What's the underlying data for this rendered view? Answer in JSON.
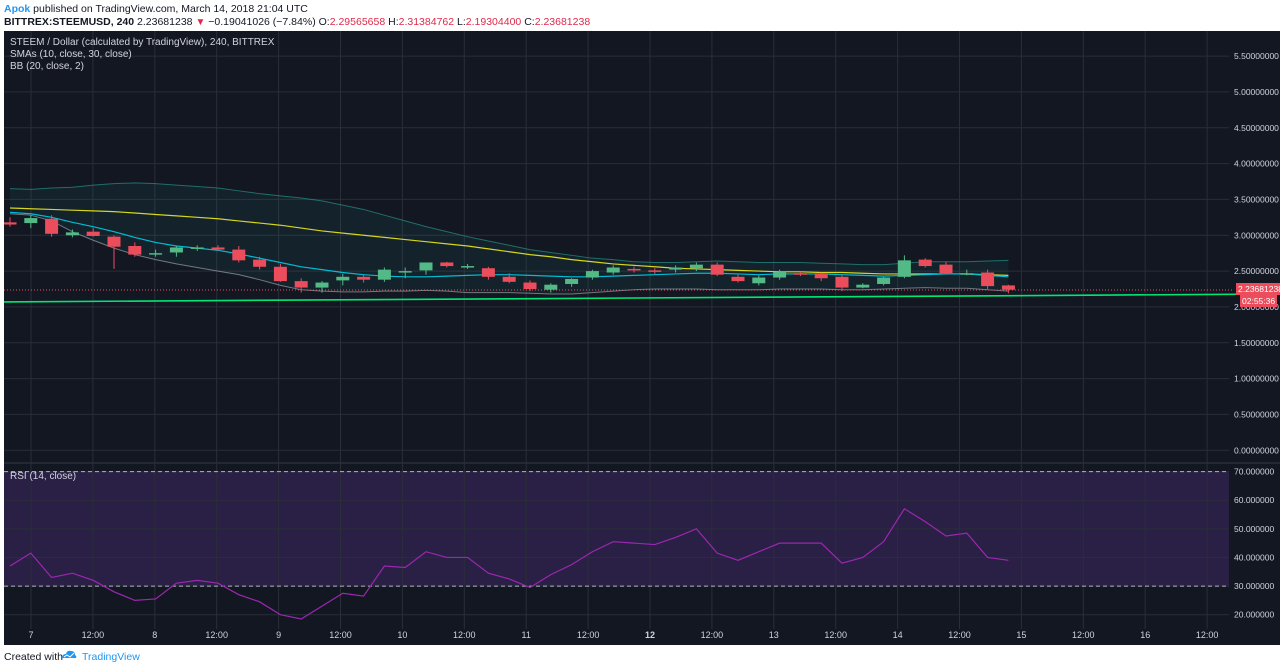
{
  "header": {
    "author": "Apok",
    "published_text": "published on TradingView.com, March 14, 2018 21:04 UTC",
    "symbol": "BITTREX:STEEMUSD, 240",
    "last_price": "2.23681238",
    "change_arrow": "▼",
    "change": "−0.19041026 (−7.84%)",
    "ohlc": {
      "o_label": "O:",
      "o": "2.29565658",
      "h_label": "H:",
      "h": "2.31384762",
      "l_label": "L:",
      "l": "2.19304400",
      "c_label": "C:",
      "c": "2.23681238"
    }
  },
  "legend": {
    "title": "STEEM / Dollar (calculated by TradingView), 240, BITTREX",
    "sma": "SMAs (10, close, 30, close)",
    "bb": "BB (20, close, 2)",
    "rsi": "RSI (14, close)"
  },
  "price_tags": {
    "current_price": "2.23681238",
    "countdown": "02:55:36"
  },
  "footer": {
    "created_with": "Created with",
    "brand": "TradingView"
  },
  "colors": {
    "background": "#131722",
    "grid": "#2a2e39",
    "up": "#53b987",
    "down": "#eb4d5c",
    "sma_fast": "#00bcd4",
    "sma_slow": "#d6d61e",
    "bb_band": "#26a69a",
    "support_line": "#00e676",
    "rsi_line": "#9c27b0",
    "rsi_fill": "#2a1f45",
    "axis_text": "#d1d4dc",
    "price_tag": "#eb4d5c"
  },
  "chart_data": [
    {
      "type": "candlestick",
      "title": "STEEM / Dollar (calculated by TradingView), 240, BITTREX",
      "ylim": [
        -0.15,
        5.85
      ],
      "y_ticks": [
        "5.50000000",
        "5.00000000",
        "4.50000000",
        "4.00000000",
        "3.50000000",
        "3.00000000",
        "2.50000000",
        "2.00000000",
        "1.50000000",
        "1.00000000",
        "0.50000000",
        "0.00000000"
      ],
      "x_ticks": [
        "7",
        "12:00",
        "8",
        "12:00",
        "9",
        "12:00",
        "10",
        "12:00",
        "11",
        "12:00",
        "12",
        "12:00",
        "13",
        "12:00",
        "14",
        "12:00",
        "15",
        "12:00",
        "16",
        "12:00"
      ],
      "candles": [
        {
          "o": 3.18,
          "h": 3.25,
          "l": 3.12,
          "c": 3.15
        },
        {
          "o": 3.17,
          "h": 3.28,
          "l": 3.1,
          "c": 3.24
        },
        {
          "o": 3.23,
          "h": 3.28,
          "l": 2.98,
          "c": 3.02
        },
        {
          "o": 3.0,
          "h": 3.08,
          "l": 2.97,
          "c": 3.04
        },
        {
          "o": 3.05,
          "h": 3.1,
          "l": 2.98,
          "c": 2.99
        },
        {
          "o": 2.98,
          "h": 3.0,
          "l": 2.53,
          "c": 2.84
        },
        {
          "o": 2.85,
          "h": 2.9,
          "l": 2.7,
          "c": 2.73
        },
        {
          "o": 2.74,
          "h": 2.8,
          "l": 2.7,
          "c": 2.75
        },
        {
          "o": 2.76,
          "h": 2.85,
          "l": 2.7,
          "c": 2.83
        },
        {
          "o": 2.82,
          "h": 2.86,
          "l": 2.78,
          "c": 2.83
        },
        {
          "o": 2.83,
          "h": 2.86,
          "l": 2.78,
          "c": 2.8
        },
        {
          "o": 2.8,
          "h": 2.85,
          "l": 2.62,
          "c": 2.65
        },
        {
          "o": 2.66,
          "h": 2.7,
          "l": 2.52,
          "c": 2.56
        },
        {
          "o": 2.56,
          "h": 2.6,
          "l": 2.35,
          "c": 2.36
        },
        {
          "o": 2.36,
          "h": 2.4,
          "l": 2.2,
          "c": 2.27
        },
        {
          "o": 2.27,
          "h": 2.36,
          "l": 2.2,
          "c": 2.34
        },
        {
          "o": 2.37,
          "h": 2.46,
          "l": 2.3,
          "c": 2.42
        },
        {
          "o": 2.42,
          "h": 2.45,
          "l": 2.34,
          "c": 2.38
        },
        {
          "o": 2.38,
          "h": 2.55,
          "l": 2.35,
          "c": 2.52
        },
        {
          "o": 2.5,
          "h": 2.55,
          "l": 2.4,
          "c": 2.5
        },
        {
          "o": 2.51,
          "h": 2.62,
          "l": 2.45,
          "c": 2.62
        },
        {
          "o": 2.62,
          "h": 2.63,
          "l": 2.55,
          "c": 2.57
        },
        {
          "o": 2.57,
          "h": 2.6,
          "l": 2.53,
          "c": 2.57
        },
        {
          "o": 2.54,
          "h": 2.56,
          "l": 2.38,
          "c": 2.42
        },
        {
          "o": 2.42,
          "h": 2.47,
          "l": 2.33,
          "c": 2.35
        },
        {
          "o": 2.34,
          "h": 2.37,
          "l": 2.22,
          "c": 2.25
        },
        {
          "o": 2.24,
          "h": 2.33,
          "l": 2.2,
          "c": 2.31
        },
        {
          "o": 2.32,
          "h": 2.4,
          "l": 2.28,
          "c": 2.39
        },
        {
          "o": 2.41,
          "h": 2.52,
          "l": 2.38,
          "c": 2.5
        },
        {
          "o": 2.48,
          "h": 2.58,
          "l": 2.45,
          "c": 2.55
        },
        {
          "o": 2.53,
          "h": 2.56,
          "l": 2.48,
          "c": 2.51
        },
        {
          "o": 2.51,
          "h": 2.54,
          "l": 2.46,
          "c": 2.5
        },
        {
          "o": 2.52,
          "h": 2.58,
          "l": 2.48,
          "c": 2.55
        },
        {
          "o": 2.54,
          "h": 2.62,
          "l": 2.5,
          "c": 2.59
        },
        {
          "o": 2.59,
          "h": 2.62,
          "l": 2.43,
          "c": 2.45
        },
        {
          "o": 2.42,
          "h": 2.45,
          "l": 2.34,
          "c": 2.36
        },
        {
          "o": 2.33,
          "h": 2.44,
          "l": 2.3,
          "c": 2.41
        },
        {
          "o": 2.41,
          "h": 2.52,
          "l": 2.38,
          "c": 2.49
        },
        {
          "o": 2.47,
          "h": 2.49,
          "l": 2.43,
          "c": 2.46
        },
        {
          "o": 2.46,
          "h": 2.48,
          "l": 2.36,
          "c": 2.4
        },
        {
          "o": 2.42,
          "h": 2.45,
          "l": 2.22,
          "c": 2.27
        },
        {
          "o": 2.27,
          "h": 2.33,
          "l": 2.26,
          "c": 2.31
        },
        {
          "o": 2.32,
          "h": 2.42,
          "l": 2.3,
          "c": 2.41
        },
        {
          "o": 2.42,
          "h": 2.72,
          "l": 2.4,
          "c": 2.65
        },
        {
          "o": 2.66,
          "h": 2.68,
          "l": 2.55,
          "c": 2.57
        },
        {
          "o": 2.59,
          "h": 2.63,
          "l": 2.45,
          "c": 2.47
        },
        {
          "o": 2.47,
          "h": 2.52,
          "l": 2.44,
          "c": 2.47
        },
        {
          "o": 2.48,
          "h": 2.52,
          "l": 2.25,
          "c": 2.29
        },
        {
          "o": 2.3,
          "h": 2.31,
          "l": 2.19,
          "c": 2.24
        }
      ],
      "sma_fast": [
        3.32,
        3.3,
        3.25,
        3.18,
        3.12,
        3.05,
        2.97,
        2.9,
        2.85,
        2.82,
        2.79,
        2.74,
        2.68,
        2.62,
        2.56,
        2.52,
        2.48,
        2.45,
        2.43,
        2.42,
        2.42,
        2.43,
        2.44,
        2.45,
        2.45,
        2.44,
        2.43,
        2.42,
        2.42,
        2.43,
        2.44,
        2.45,
        2.46,
        2.47,
        2.47,
        2.46,
        2.45,
        2.46,
        2.46,
        2.46,
        2.45,
        2.44,
        2.43,
        2.44,
        2.45,
        2.46,
        2.46,
        2.44,
        2.42
      ],
      "sma_slow": [
        3.38,
        3.37,
        3.36,
        3.35,
        3.34,
        3.33,
        3.31,
        3.29,
        3.27,
        3.25,
        3.23,
        3.2,
        3.17,
        3.14,
        3.1,
        3.06,
        3.03,
        3.0,
        2.97,
        2.94,
        2.91,
        2.88,
        2.85,
        2.81,
        2.77,
        2.73,
        2.7,
        2.66,
        2.63,
        2.6,
        2.58,
        2.56,
        2.54,
        2.53,
        2.52,
        2.51,
        2.5,
        2.49,
        2.49,
        2.48,
        2.48,
        2.47,
        2.46,
        2.46,
        2.46,
        2.46,
        2.46,
        2.45,
        2.44
      ],
      "bb_upper": [
        3.65,
        3.64,
        3.66,
        3.67,
        3.7,
        3.72,
        3.73,
        3.72,
        3.7,
        3.68,
        3.66,
        3.62,
        3.58,
        3.55,
        3.52,
        3.48,
        3.42,
        3.36,
        3.28,
        3.2,
        3.12,
        3.05,
        2.98,
        2.92,
        2.86,
        2.8,
        2.76,
        2.72,
        2.68,
        2.66,
        2.63,
        2.62,
        2.62,
        2.63,
        2.64,
        2.63,
        2.62,
        2.62,
        2.62,
        2.61,
        2.6,
        2.59,
        2.59,
        2.61,
        2.63,
        2.63,
        2.63,
        2.64,
        2.65
      ],
      "bb_lower": [
        3.3,
        3.28,
        3.2,
        3.05,
        2.93,
        2.82,
        2.73,
        2.66,
        2.6,
        2.55,
        2.5,
        2.45,
        2.38,
        2.3,
        2.24,
        2.22,
        2.21,
        2.21,
        2.22,
        2.22,
        2.23,
        2.22,
        2.2,
        2.2,
        2.2,
        2.19,
        2.18,
        2.18,
        2.2,
        2.22,
        2.24,
        2.25,
        2.25,
        2.25,
        2.24,
        2.24,
        2.24,
        2.25,
        2.25,
        2.25,
        2.24,
        2.24,
        2.25,
        2.26,
        2.27,
        2.26,
        2.26,
        2.24,
        2.22
      ],
      "support_line": {
        "start": 2.07,
        "end": 2.18
      },
      "current_price": 2.23681238
    },
    {
      "type": "line",
      "title": "RSI (14, close)",
      "ylim": [
        15,
        73
      ],
      "y_ticks": [
        "70.000000",
        "60.000000",
        "50.000000",
        "40.000000",
        "30.000000",
        "20.000000"
      ],
      "bands": [
        30,
        70
      ],
      "values": [
        37,
        41.5,
        33,
        34.5,
        32,
        28,
        25,
        25.5,
        31,
        32,
        31,
        27,
        24.5,
        20,
        18.5,
        23,
        27.5,
        26.5,
        37,
        36.5,
        42,
        40,
        40,
        34.5,
        32.5,
        29.5,
        34,
        37.5,
        42,
        45.5,
        45,
        44.5,
        47,
        50,
        41.5,
        39,
        42,
        45,
        45,
        45,
        38,
        40,
        45.5,
        57,
        52.5,
        47.5,
        48.5,
        40,
        39
      ]
    }
  ]
}
